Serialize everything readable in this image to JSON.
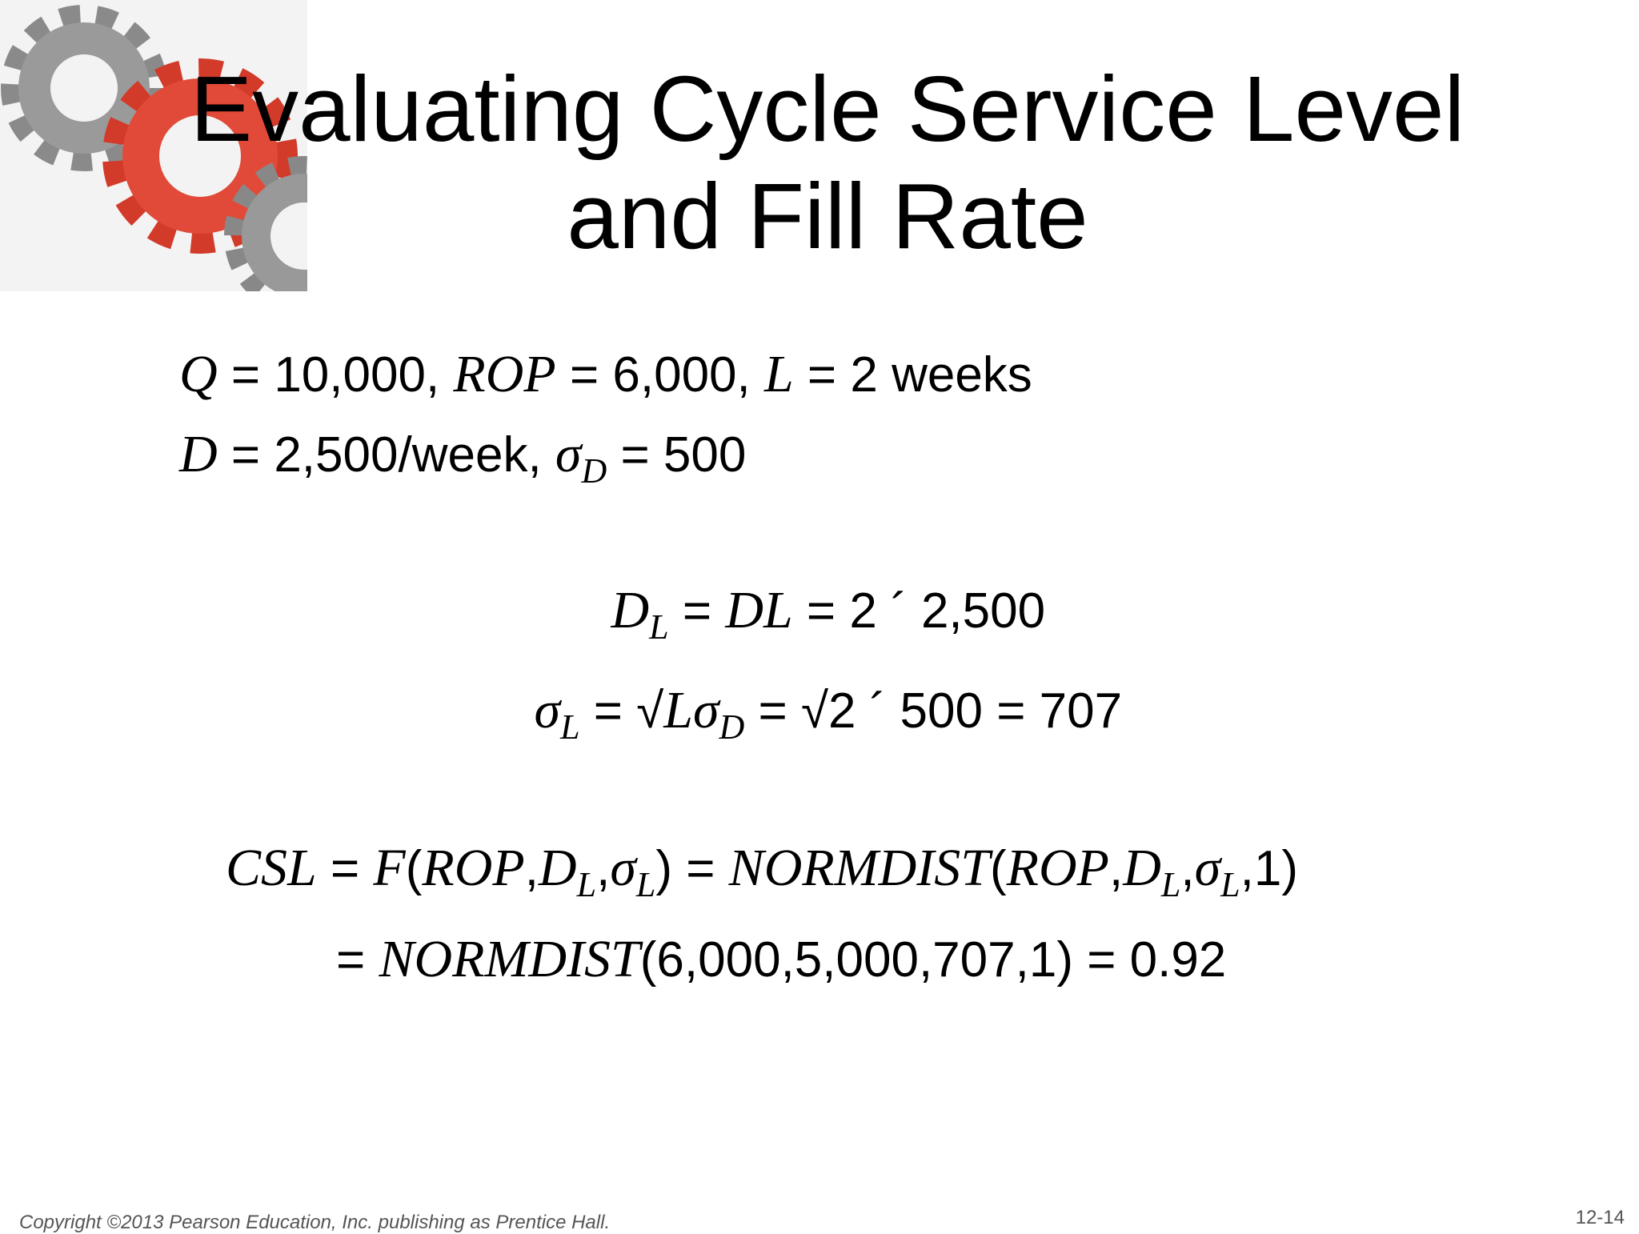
{
  "header": {
    "title_lines": [
      "Evaluating Cycle Service Level",
      "and Fill Rate"
    ]
  },
  "body": {
    "lines": [
      {
        "segments": [
          {
            "text": "Q",
            "style": "i"
          },
          {
            "text": " = 10,000, ",
            "style": "r"
          },
          {
            "text": "ROP",
            "style": "i"
          },
          {
            "text": " = 6,000, ",
            "style": "r"
          },
          {
            "text": "L",
            "style": "i"
          },
          {
            "text": " = 2 weeks",
            "style": "r"
          }
        ]
      },
      {
        "segments": [
          {
            "text": "D",
            "style": "i"
          },
          {
            "text": " = 2,500/week, ",
            "style": "r"
          },
          {
            "text": "σ",
            "style": "i"
          },
          {
            "text": "D",
            "style": "si"
          },
          {
            "text": " = 500",
            "style": "r"
          }
        ]
      },
      {
        "segments": [
          {
            "text": "D",
            "style": "i"
          },
          {
            "text": "L",
            "style": "si"
          },
          {
            "text": " = ",
            "style": "r"
          },
          {
            "text": "DL",
            "style": "i"
          },
          {
            "text": " = 2 ´ 2,500",
            "style": "r"
          }
        ]
      },
      {
        "segments": [
          {
            "text": "σ",
            "style": "i"
          },
          {
            "text": "L",
            "style": "si"
          },
          {
            "text": " = √",
            "style": "r"
          },
          {
            "text": "Lσ",
            "style": "i"
          },
          {
            "text": "D",
            "style": "si"
          },
          {
            "text": " = √2 ´ 500 = 707",
            "style": "r"
          }
        ]
      },
      {
        "segments": [
          {
            "text": "CSL",
            "style": "i"
          },
          {
            "text": " = ",
            "style": "r"
          },
          {
            "text": "F",
            "style": "i"
          },
          {
            "text": "(",
            "style": "r"
          },
          {
            "text": "ROP",
            "style": "i"
          },
          {
            "text": ",",
            "style": "r"
          },
          {
            "text": "D",
            "style": "i"
          },
          {
            "text": "L",
            "style": "si"
          },
          {
            "text": ",",
            "style": "r"
          },
          {
            "text": "σ",
            "style": "i"
          },
          {
            "text": "L",
            "style": "si"
          },
          {
            "text": ") = ",
            "style": "r"
          },
          {
            "text": "NORMDIST",
            "style": "i"
          },
          {
            "text": "(",
            "style": "r"
          },
          {
            "text": "ROP",
            "style": "i"
          },
          {
            "text": ",",
            "style": "r"
          },
          {
            "text": "D",
            "style": "i"
          },
          {
            "text": "L",
            "style": "si"
          },
          {
            "text": ",",
            "style": "r"
          },
          {
            "text": "σ",
            "style": "i"
          },
          {
            "text": "L",
            "style": "si"
          },
          {
            "text": ",1)",
            "style": "r"
          }
        ]
      },
      {
        "segments": [
          {
            "text": "= ",
            "style": "r"
          },
          {
            "text": "NORMDIST",
            "style": "i"
          },
          {
            "text": "(6,000,5,000,707,1) = 0.92",
            "style": "r"
          }
        ]
      }
    ]
  },
  "footer": {
    "copyright": "Copyright ©2013 Pearson Education, Inc. publishing as Prentice Hall.",
    "page": "12-14"
  }
}
